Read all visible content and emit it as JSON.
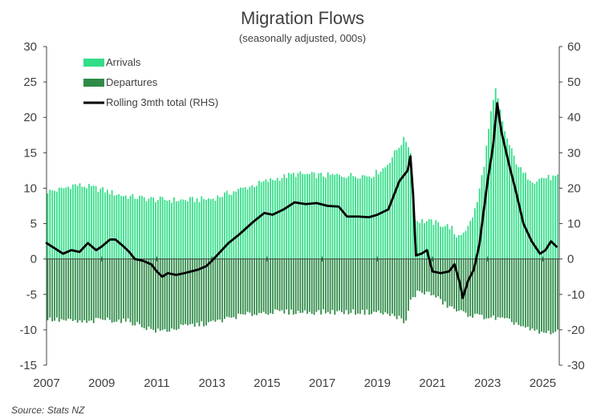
{
  "chart_data": {
    "type": "bar",
    "title": "Migration Flows",
    "subtitle": "(seasonally adjusted, 000s)",
    "source": "Source: Stats NZ",
    "xlabel": "",
    "ylabel": "",
    "ylim": [
      -15,
      30
    ],
    "y2lim": [
      -30,
      60
    ],
    "yticks": [
      30,
      25,
      20,
      15,
      10,
      5,
      0,
      -5,
      -10,
      -15
    ],
    "y2ticks": [
      60,
      50,
      40,
      30,
      20,
      10,
      0,
      -10,
      -20,
      -30
    ],
    "xlim": [
      2007.0,
      2025.6
    ],
    "xticks": [
      "2007",
      "2009",
      "2011",
      "2013",
      "2015",
      "2017",
      "2019",
      "2021",
      "2023",
      "2025"
    ],
    "legend_position": "top-left",
    "legend": [
      "Arrivals",
      "Departures",
      "Rolling 3mth total (RHS)"
    ],
    "colors": {
      "arrivals": "#33dd88",
      "departures": "#2e8b47",
      "line": "#000000",
      "axis": "#404040"
    },
    "series": [
      {
        "name": "Arrivals",
        "axis": "left",
        "keyframes": [
          [
            2007.0,
            9.5
          ],
          [
            2007.5,
            9.8
          ],
          [
            2008.0,
            10.5
          ],
          [
            2008.5,
            10.2
          ],
          [
            2009.0,
            9.8
          ],
          [
            2009.5,
            9.2
          ],
          [
            2010.0,
            8.8
          ],
          [
            2011.0,
            8.4
          ],
          [
            2012.0,
            8.3
          ],
          [
            2013.0,
            8.5
          ],
          [
            2014.0,
            9.8
          ],
          [
            2015.0,
            11.0
          ],
          [
            2016.0,
            12.0
          ],
          [
            2017.0,
            11.8
          ],
          [
            2018.0,
            11.8
          ],
          [
            2018.8,
            11.8
          ],
          [
            2019.3,
            13.0
          ],
          [
            2019.8,
            16.0
          ],
          [
            2020.0,
            17.0
          ],
          [
            2020.2,
            15.5
          ],
          [
            2020.35,
            5.5
          ],
          [
            2021.0,
            5.2
          ],
          [
            2021.7,
            4.5
          ],
          [
            2021.8,
            3.0
          ],
          [
            2022.0,
            3.5
          ],
          [
            2022.3,
            4.5
          ],
          [
            2022.6,
            7.5
          ],
          [
            2022.9,
            14.0
          ],
          [
            2023.1,
            20.0
          ],
          [
            2023.3,
            24.0
          ],
          [
            2023.5,
            20.0
          ],
          [
            2023.7,
            17.0
          ],
          [
            2024.0,
            14.0
          ],
          [
            2024.3,
            12.0
          ],
          [
            2024.7,
            11.0
          ],
          [
            2025.0,
            11.5
          ],
          [
            2025.5,
            11.5
          ]
        ]
      },
      {
        "name": "Departures",
        "axis": "left",
        "keyframes": [
          [
            2007.0,
            -8.5
          ],
          [
            2008.0,
            -8.8
          ],
          [
            2008.5,
            -9.0
          ],
          [
            2009.0,
            -8.5
          ],
          [
            2010.0,
            -8.8
          ],
          [
            2010.5,
            -9.5
          ],
          [
            2011.0,
            -10.2
          ],
          [
            2011.5,
            -10.0
          ],
          [
            2012.0,
            -9.5
          ],
          [
            2013.0,
            -9.0
          ],
          [
            2014.0,
            -8.0
          ],
          [
            2015.0,
            -7.5
          ],
          [
            2016.0,
            -7.5
          ],
          [
            2017.0,
            -7.5
          ],
          [
            2018.0,
            -7.5
          ],
          [
            2019.0,
            -7.5
          ],
          [
            2019.8,
            -8.2
          ],
          [
            2020.0,
            -9.5
          ],
          [
            2020.2,
            -6.0
          ],
          [
            2020.5,
            -4.5
          ],
          [
            2021.0,
            -5.0
          ],
          [
            2021.5,
            -6.5
          ],
          [
            2022.0,
            -7.5
          ],
          [
            2022.5,
            -8.0
          ],
          [
            2023.0,
            -8.2
          ],
          [
            2023.5,
            -8.5
          ],
          [
            2024.0,
            -9.0
          ],
          [
            2024.5,
            -10.0
          ],
          [
            2025.0,
            -10.5
          ],
          [
            2025.5,
            -10.2
          ]
        ]
      },
      {
        "name": "Rolling 3mth total (RHS)",
        "axis": "right",
        "type": "line",
        "keyframes": [
          [
            2007.0,
            4.5
          ],
          [
            2007.3,
            3.0
          ],
          [
            2007.6,
            1.5
          ],
          [
            2007.9,
            2.5
          ],
          [
            2008.2,
            2.0
          ],
          [
            2008.5,
            4.5
          ],
          [
            2008.8,
            2.5
          ],
          [
            2009.0,
            3.5
          ],
          [
            2009.3,
            5.5
          ],
          [
            2009.5,
            5.5
          ],
          [
            2009.8,
            3.5
          ],
          [
            2010.0,
            2.0
          ],
          [
            2010.2,
            0.0
          ],
          [
            2010.5,
            -0.5
          ],
          [
            2010.8,
            -1.5
          ],
          [
            2011.0,
            -3.5
          ],
          [
            2011.2,
            -5.0
          ],
          [
            2011.4,
            -4.0
          ],
          [
            2011.7,
            -4.5
          ],
          [
            2012.0,
            -4.0
          ],
          [
            2012.5,
            -3.0
          ],
          [
            2012.8,
            -2.0
          ],
          [
            2013.0,
            -0.5
          ],
          [
            2013.3,
            2.0
          ],
          [
            2013.6,
            4.5
          ],
          [
            2014.0,
            7.0
          ],
          [
            2014.5,
            10.5
          ],
          [
            2014.9,
            13.0
          ],
          [
            2015.2,
            12.5
          ],
          [
            2015.6,
            14.0
          ],
          [
            2016.0,
            16.0
          ],
          [
            2016.4,
            15.5
          ],
          [
            2016.8,
            15.8
          ],
          [
            2017.2,
            15.0
          ],
          [
            2017.6,
            14.8
          ],
          [
            2017.9,
            12.0
          ],
          [
            2018.3,
            12.0
          ],
          [
            2018.7,
            11.8
          ],
          [
            2019.0,
            12.5
          ],
          [
            2019.4,
            14.0
          ],
          [
            2019.8,
            22.0
          ],
          [
            2020.1,
            25.0
          ],
          [
            2020.2,
            29.0
          ],
          [
            2020.3,
            18.0
          ],
          [
            2020.4,
            1.0
          ],
          [
            2020.6,
            1.5
          ],
          [
            2020.8,
            2.5
          ],
          [
            2021.0,
            -3.5
          ],
          [
            2021.3,
            -4.0
          ],
          [
            2021.6,
            -3.5
          ],
          [
            2021.8,
            -1.5
          ],
          [
            2022.0,
            -7.0
          ],
          [
            2022.1,
            -11.0
          ],
          [
            2022.3,
            -6.0
          ],
          [
            2022.5,
            -3.0
          ],
          [
            2022.7,
            4.0
          ],
          [
            2022.9,
            16.0
          ],
          [
            2023.0,
            22.0
          ],
          [
            2023.2,
            32.0
          ],
          [
            2023.35,
            44.0
          ],
          [
            2023.5,
            36.0
          ],
          [
            2023.8,
            26.0
          ],
          [
            2024.0,
            20.0
          ],
          [
            2024.3,
            10.0
          ],
          [
            2024.6,
            5.0
          ],
          [
            2024.9,
            1.5
          ],
          [
            2025.1,
            2.5
          ],
          [
            2025.3,
            5.0
          ],
          [
            2025.5,
            3.5
          ]
        ]
      }
    ]
  }
}
